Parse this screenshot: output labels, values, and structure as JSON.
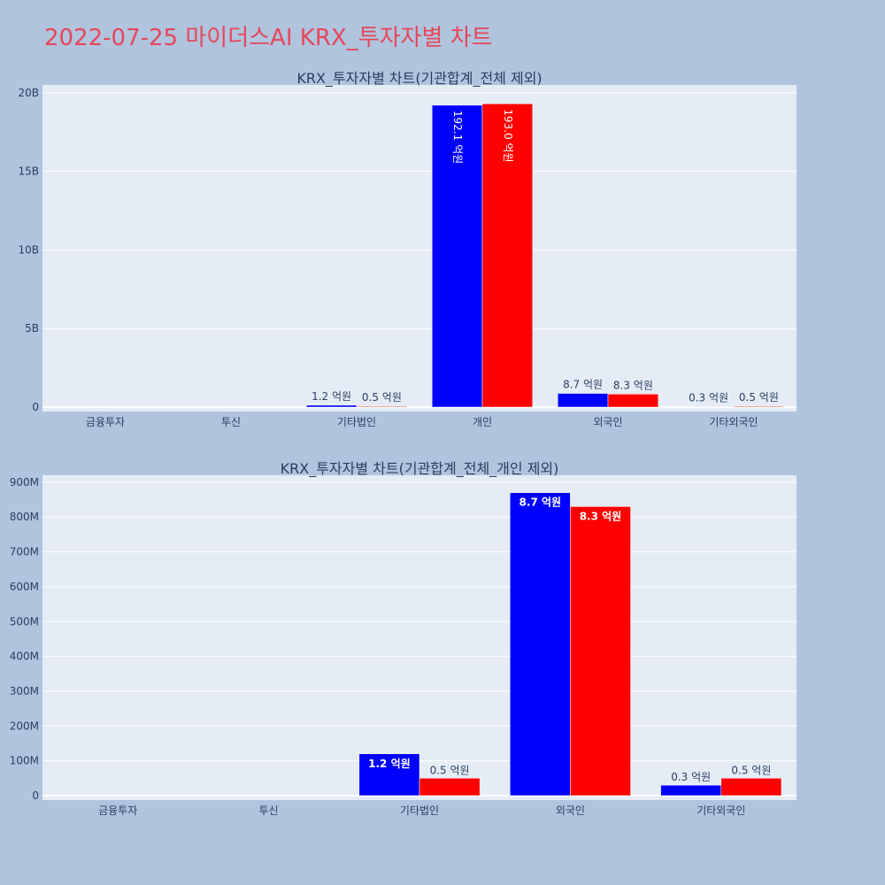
{
  "page_title": "2022-07-25 마이더스AI KRX_투자자별 차트",
  "colors": {
    "background": "#b0c4de",
    "plot_bg": "#e5ecf6",
    "title": "#e8465a",
    "series_a": "#0000ff",
    "series_b": "#ff0000"
  },
  "chart_data": [
    {
      "type": "bar",
      "title": "KRX_투자자별 차트(기관합계_전체 제외)",
      "categories": [
        "금융투자",
        "투신",
        "기타법인",
        "개인",
        "외국인",
        "기타외국인"
      ],
      "ylim": [
        0,
        20500000000
      ],
      "yticks": [
        0,
        5000000000,
        10000000000,
        15000000000,
        20000000000
      ],
      "ytick_labels": [
        "0",
        "5B",
        "10B",
        "15B",
        "20B"
      ],
      "grid": true,
      "series": [
        {
          "color": "#0000ff",
          "values": [
            0,
            0,
            120000000,
            19210000000,
            870000000,
            30000000
          ],
          "labels": [
            "",
            "",
            "1.2 억원",
            "192.1 억원",
            "8.7 억원",
            "0.3 억원"
          ]
        },
        {
          "color": "#ff0000",
          "values": [
            0,
            0,
            50000000,
            19300000000,
            830000000,
            50000000
          ],
          "labels": [
            "",
            "",
            "0.5 억원",
            "193.0 억원",
            "8.3 억원",
            "0.5 억원"
          ]
        }
      ]
    },
    {
      "type": "bar",
      "title": "KRX_투자자별 차트(기관합계_전체_개인 제외)",
      "categories": [
        "금융투자",
        "투신",
        "기타법인",
        "외국인",
        "기타외국인"
      ],
      "ylim": [
        0,
        920000000
      ],
      "yticks": [
        0,
        100000000,
        200000000,
        300000000,
        400000000,
        500000000,
        600000000,
        700000000,
        800000000,
        900000000
      ],
      "ytick_labels": [
        "0",
        "100M",
        "200M",
        "300M",
        "400M",
        "500M",
        "600M",
        "700M",
        "800M",
        "900M"
      ],
      "grid": true,
      "series": [
        {
          "color": "#0000ff",
          "values": [
            0,
            0,
            120000000,
            870000000,
            30000000
          ],
          "labels": [
            "",
            "",
            "1.2 억원",
            "8.7 억원",
            "0.3 억원"
          ]
        },
        {
          "color": "#ff0000",
          "values": [
            0,
            0,
            50000000,
            830000000,
            50000000
          ],
          "labels": [
            "",
            "",
            "0.5 억원",
            "8.3 억원",
            "0.5 억원"
          ]
        }
      ]
    }
  ]
}
